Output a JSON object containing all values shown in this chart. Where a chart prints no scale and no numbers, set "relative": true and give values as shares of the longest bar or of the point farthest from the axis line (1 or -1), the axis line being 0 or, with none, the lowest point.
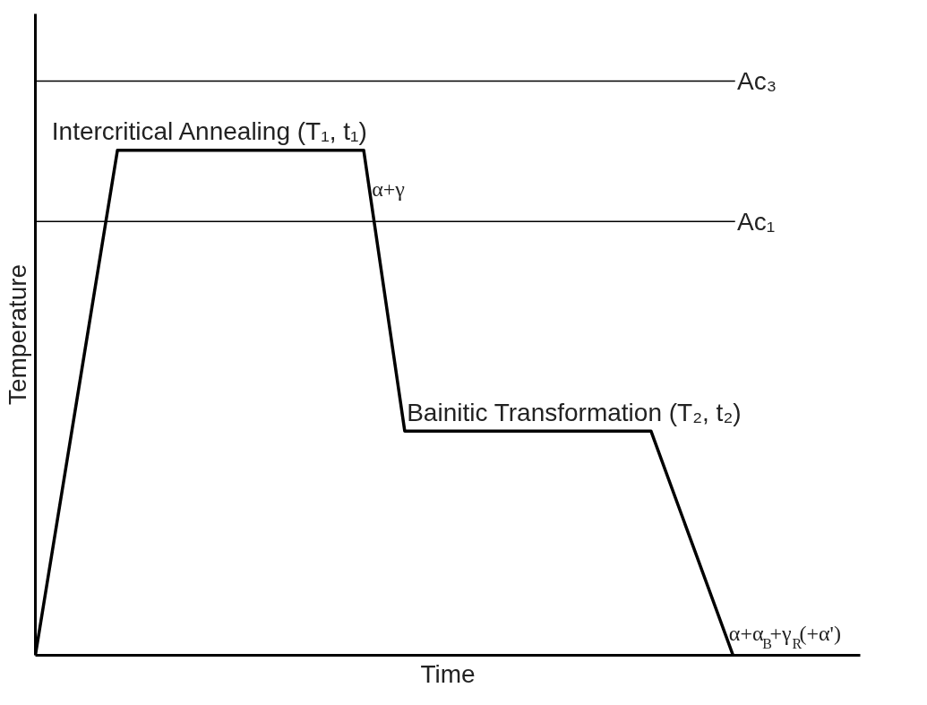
{
  "chart_data": {
    "type": "line",
    "relative": true,
    "xlabel": "Time",
    "ylabel": "Temperature",
    "categories": [
      null,
      null,
      null,
      null,
      null,
      null,
      null,
      null,
      null,
      null,
      null,
      null,
      null,
      null,
      null,
      null,
      null,
      null,
      null,
      null,
      null
    ],
    "series": [
      {
        "color": "#000000",
        "values": [
          0,
          0.5,
          1,
          1,
          1,
          1,
          1,
          1,
          1,
          0.444,
          0.444,
          0.444,
          0.444,
          0.444,
          0.444,
          0.444,
          0.222,
          0,
          null,
          null,
          null
        ]
      }
    ],
    "ref_lines": [
      {
        "axis": "y",
        "value": 1.137,
        "label": "Ac₃",
        "color": "#000000"
      },
      {
        "axis": "y",
        "value": 0.859,
        "label": "Ac₁",
        "color": "#000000"
      }
    ],
    "annotations": [
      "Intercritical Annealing (T₁, t₁)",
      "α+γ",
      "Bainitic Transformation (T₂, t₂)",
      "α+α$_{B}$+γ$_{R}$(+α')"
    ],
    "line_style": "solid"
  }
}
